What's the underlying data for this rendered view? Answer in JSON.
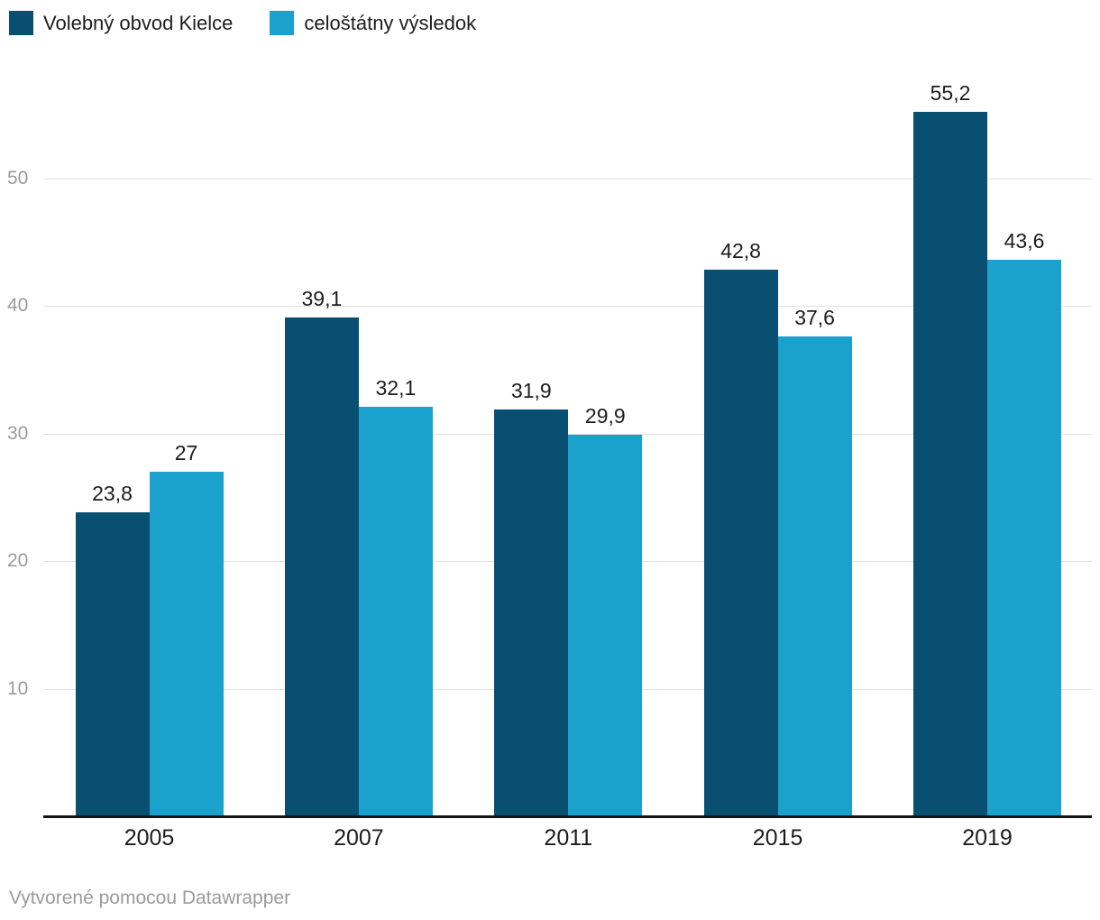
{
  "legend": {
    "items": [
      {
        "label": "Volebný obvod Kielce",
        "color": "#084f72"
      },
      {
        "label": "celoštátny výsledok",
        "color": "#1aa2cd"
      }
    ]
  },
  "chart_data": {
    "type": "bar",
    "title": "",
    "categories": [
      "2005",
      "2007",
      "2011",
      "2015",
      "2019"
    ],
    "series": [
      {
        "name": "Volebný obvod Kielce",
        "color": "#084f72",
        "values": [
          23.8,
          39.1,
          31.9,
          42.8,
          55.2
        ],
        "value_labels": [
          "23,8",
          "39,1",
          "31,9",
          "42,8",
          "55,2"
        ]
      },
      {
        "name": "celoštátny výsledok",
        "color": "#1aa2cd",
        "values": [
          27,
          32.1,
          29.9,
          37.6,
          43.6
        ],
        "value_labels": [
          "27",
          "32,1",
          "29,9",
          "37,6",
          "43,6"
        ]
      }
    ],
    "yticks": [
      10,
      20,
      30,
      40,
      50
    ],
    "ylim": [
      0,
      57.8
    ],
    "grid": "horizontal",
    "legend_position": "top-left",
    "value_labels_shown": true,
    "decimal_separator": ","
  },
  "footer": {
    "credit": "Vytvorené pomocou Datawrapper"
  },
  "colors": {
    "series_dark": "#084f72",
    "series_light": "#1aa2cd",
    "axis_text": "#9b9b9b",
    "label_text": "#1d1d1d",
    "gridline": "#e2e2e2",
    "baseline": "#151515",
    "background": "#ffffff"
  }
}
